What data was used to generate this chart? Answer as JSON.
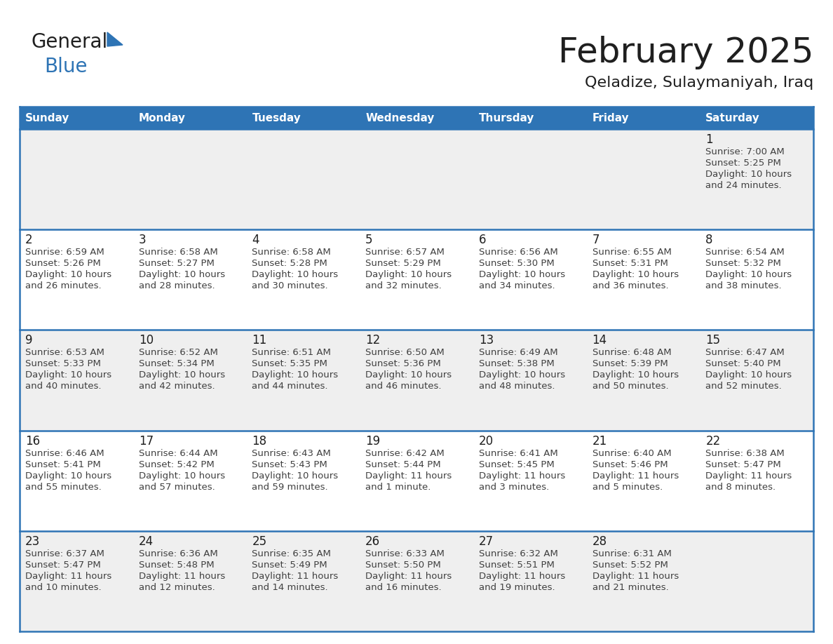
{
  "title": "February 2025",
  "subtitle": "Qeladize, Sulaymaniyah, Iraq",
  "header_bg": "#2E74B5",
  "header_text": "#FFFFFF",
  "row_bg_even": "#EFEFEF",
  "row_bg_odd": "#FFFFFF",
  "cell_border": "#2E74B5",
  "day_headers": [
    "Sunday",
    "Monday",
    "Tuesday",
    "Wednesday",
    "Thursday",
    "Friday",
    "Saturday"
  ],
  "title_color": "#1F1F1F",
  "subtitle_color": "#1F1F1F",
  "day_number_color": "#1F1F1F",
  "info_text_color": "#404040",
  "logo_general_color": "#1F1F1F",
  "logo_blue_color": "#2E74B5",
  "logo_triangle_color": "#2E74B5",
  "days": [
    {
      "day": 1,
      "col": 6,
      "row": 0,
      "sunrise": "7:00 AM",
      "sunset": "5:25 PM",
      "daylight_line1": "Daylight: 10 hours",
      "daylight_line2": "and 24 minutes."
    },
    {
      "day": 2,
      "col": 0,
      "row": 1,
      "sunrise": "6:59 AM",
      "sunset": "5:26 PM",
      "daylight_line1": "Daylight: 10 hours",
      "daylight_line2": "and 26 minutes."
    },
    {
      "day": 3,
      "col": 1,
      "row": 1,
      "sunrise": "6:58 AM",
      "sunset": "5:27 PM",
      "daylight_line1": "Daylight: 10 hours",
      "daylight_line2": "and 28 minutes."
    },
    {
      "day": 4,
      "col": 2,
      "row": 1,
      "sunrise": "6:58 AM",
      "sunset": "5:28 PM",
      "daylight_line1": "Daylight: 10 hours",
      "daylight_line2": "and 30 minutes."
    },
    {
      "day": 5,
      "col": 3,
      "row": 1,
      "sunrise": "6:57 AM",
      "sunset": "5:29 PM",
      "daylight_line1": "Daylight: 10 hours",
      "daylight_line2": "and 32 minutes."
    },
    {
      "day": 6,
      "col": 4,
      "row": 1,
      "sunrise": "6:56 AM",
      "sunset": "5:30 PM",
      "daylight_line1": "Daylight: 10 hours",
      "daylight_line2": "and 34 minutes."
    },
    {
      "day": 7,
      "col": 5,
      "row": 1,
      "sunrise": "6:55 AM",
      "sunset": "5:31 PM",
      "daylight_line1": "Daylight: 10 hours",
      "daylight_line2": "and 36 minutes."
    },
    {
      "day": 8,
      "col": 6,
      "row": 1,
      "sunrise": "6:54 AM",
      "sunset": "5:32 PM",
      "daylight_line1": "Daylight: 10 hours",
      "daylight_line2": "and 38 minutes."
    },
    {
      "day": 9,
      "col": 0,
      "row": 2,
      "sunrise": "6:53 AM",
      "sunset": "5:33 PM",
      "daylight_line1": "Daylight: 10 hours",
      "daylight_line2": "and 40 minutes."
    },
    {
      "day": 10,
      "col": 1,
      "row": 2,
      "sunrise": "6:52 AM",
      "sunset": "5:34 PM",
      "daylight_line1": "Daylight: 10 hours",
      "daylight_line2": "and 42 minutes."
    },
    {
      "day": 11,
      "col": 2,
      "row": 2,
      "sunrise": "6:51 AM",
      "sunset": "5:35 PM",
      "daylight_line1": "Daylight: 10 hours",
      "daylight_line2": "and 44 minutes."
    },
    {
      "day": 12,
      "col": 3,
      "row": 2,
      "sunrise": "6:50 AM",
      "sunset": "5:36 PM",
      "daylight_line1": "Daylight: 10 hours",
      "daylight_line2": "and 46 minutes."
    },
    {
      "day": 13,
      "col": 4,
      "row": 2,
      "sunrise": "6:49 AM",
      "sunset": "5:38 PM",
      "daylight_line1": "Daylight: 10 hours",
      "daylight_line2": "and 48 minutes."
    },
    {
      "day": 14,
      "col": 5,
      "row": 2,
      "sunrise": "6:48 AM",
      "sunset": "5:39 PM",
      "daylight_line1": "Daylight: 10 hours",
      "daylight_line2": "and 50 minutes."
    },
    {
      "day": 15,
      "col": 6,
      "row": 2,
      "sunrise": "6:47 AM",
      "sunset": "5:40 PM",
      "daylight_line1": "Daylight: 10 hours",
      "daylight_line2": "and 52 minutes."
    },
    {
      "day": 16,
      "col": 0,
      "row": 3,
      "sunrise": "6:46 AM",
      "sunset": "5:41 PM",
      "daylight_line1": "Daylight: 10 hours",
      "daylight_line2": "and 55 minutes."
    },
    {
      "day": 17,
      "col": 1,
      "row": 3,
      "sunrise": "6:44 AM",
      "sunset": "5:42 PM",
      "daylight_line1": "Daylight: 10 hours",
      "daylight_line2": "and 57 minutes."
    },
    {
      "day": 18,
      "col": 2,
      "row": 3,
      "sunrise": "6:43 AM",
      "sunset": "5:43 PM",
      "daylight_line1": "Daylight: 10 hours",
      "daylight_line2": "and 59 minutes."
    },
    {
      "day": 19,
      "col": 3,
      "row": 3,
      "sunrise": "6:42 AM",
      "sunset": "5:44 PM",
      "daylight_line1": "Daylight: 11 hours",
      "daylight_line2": "and 1 minute."
    },
    {
      "day": 20,
      "col": 4,
      "row": 3,
      "sunrise": "6:41 AM",
      "sunset": "5:45 PM",
      "daylight_line1": "Daylight: 11 hours",
      "daylight_line2": "and 3 minutes."
    },
    {
      "day": 21,
      "col": 5,
      "row": 3,
      "sunrise": "6:40 AM",
      "sunset": "5:46 PM",
      "daylight_line1": "Daylight: 11 hours",
      "daylight_line2": "and 5 minutes."
    },
    {
      "day": 22,
      "col": 6,
      "row": 3,
      "sunrise": "6:38 AM",
      "sunset": "5:47 PM",
      "daylight_line1": "Daylight: 11 hours",
      "daylight_line2": "and 8 minutes."
    },
    {
      "day": 23,
      "col": 0,
      "row": 4,
      "sunrise": "6:37 AM",
      "sunset": "5:47 PM",
      "daylight_line1": "Daylight: 11 hours",
      "daylight_line2": "and 10 minutes."
    },
    {
      "day": 24,
      "col": 1,
      "row": 4,
      "sunrise": "6:36 AM",
      "sunset": "5:48 PM",
      "daylight_line1": "Daylight: 11 hours",
      "daylight_line2": "and 12 minutes."
    },
    {
      "day": 25,
      "col": 2,
      "row": 4,
      "sunrise": "6:35 AM",
      "sunset": "5:49 PM",
      "daylight_line1": "Daylight: 11 hours",
      "daylight_line2": "and 14 minutes."
    },
    {
      "day": 26,
      "col": 3,
      "row": 4,
      "sunrise": "6:33 AM",
      "sunset": "5:50 PM",
      "daylight_line1": "Daylight: 11 hours",
      "daylight_line2": "and 16 minutes."
    },
    {
      "day": 27,
      "col": 4,
      "row": 4,
      "sunrise": "6:32 AM",
      "sunset": "5:51 PM",
      "daylight_line1": "Daylight: 11 hours",
      "daylight_line2": "and 19 minutes."
    },
    {
      "day": 28,
      "col": 5,
      "row": 4,
      "sunrise": "6:31 AM",
      "sunset": "5:52 PM",
      "daylight_line1": "Daylight: 11 hours",
      "daylight_line2": "and 21 minutes."
    }
  ]
}
